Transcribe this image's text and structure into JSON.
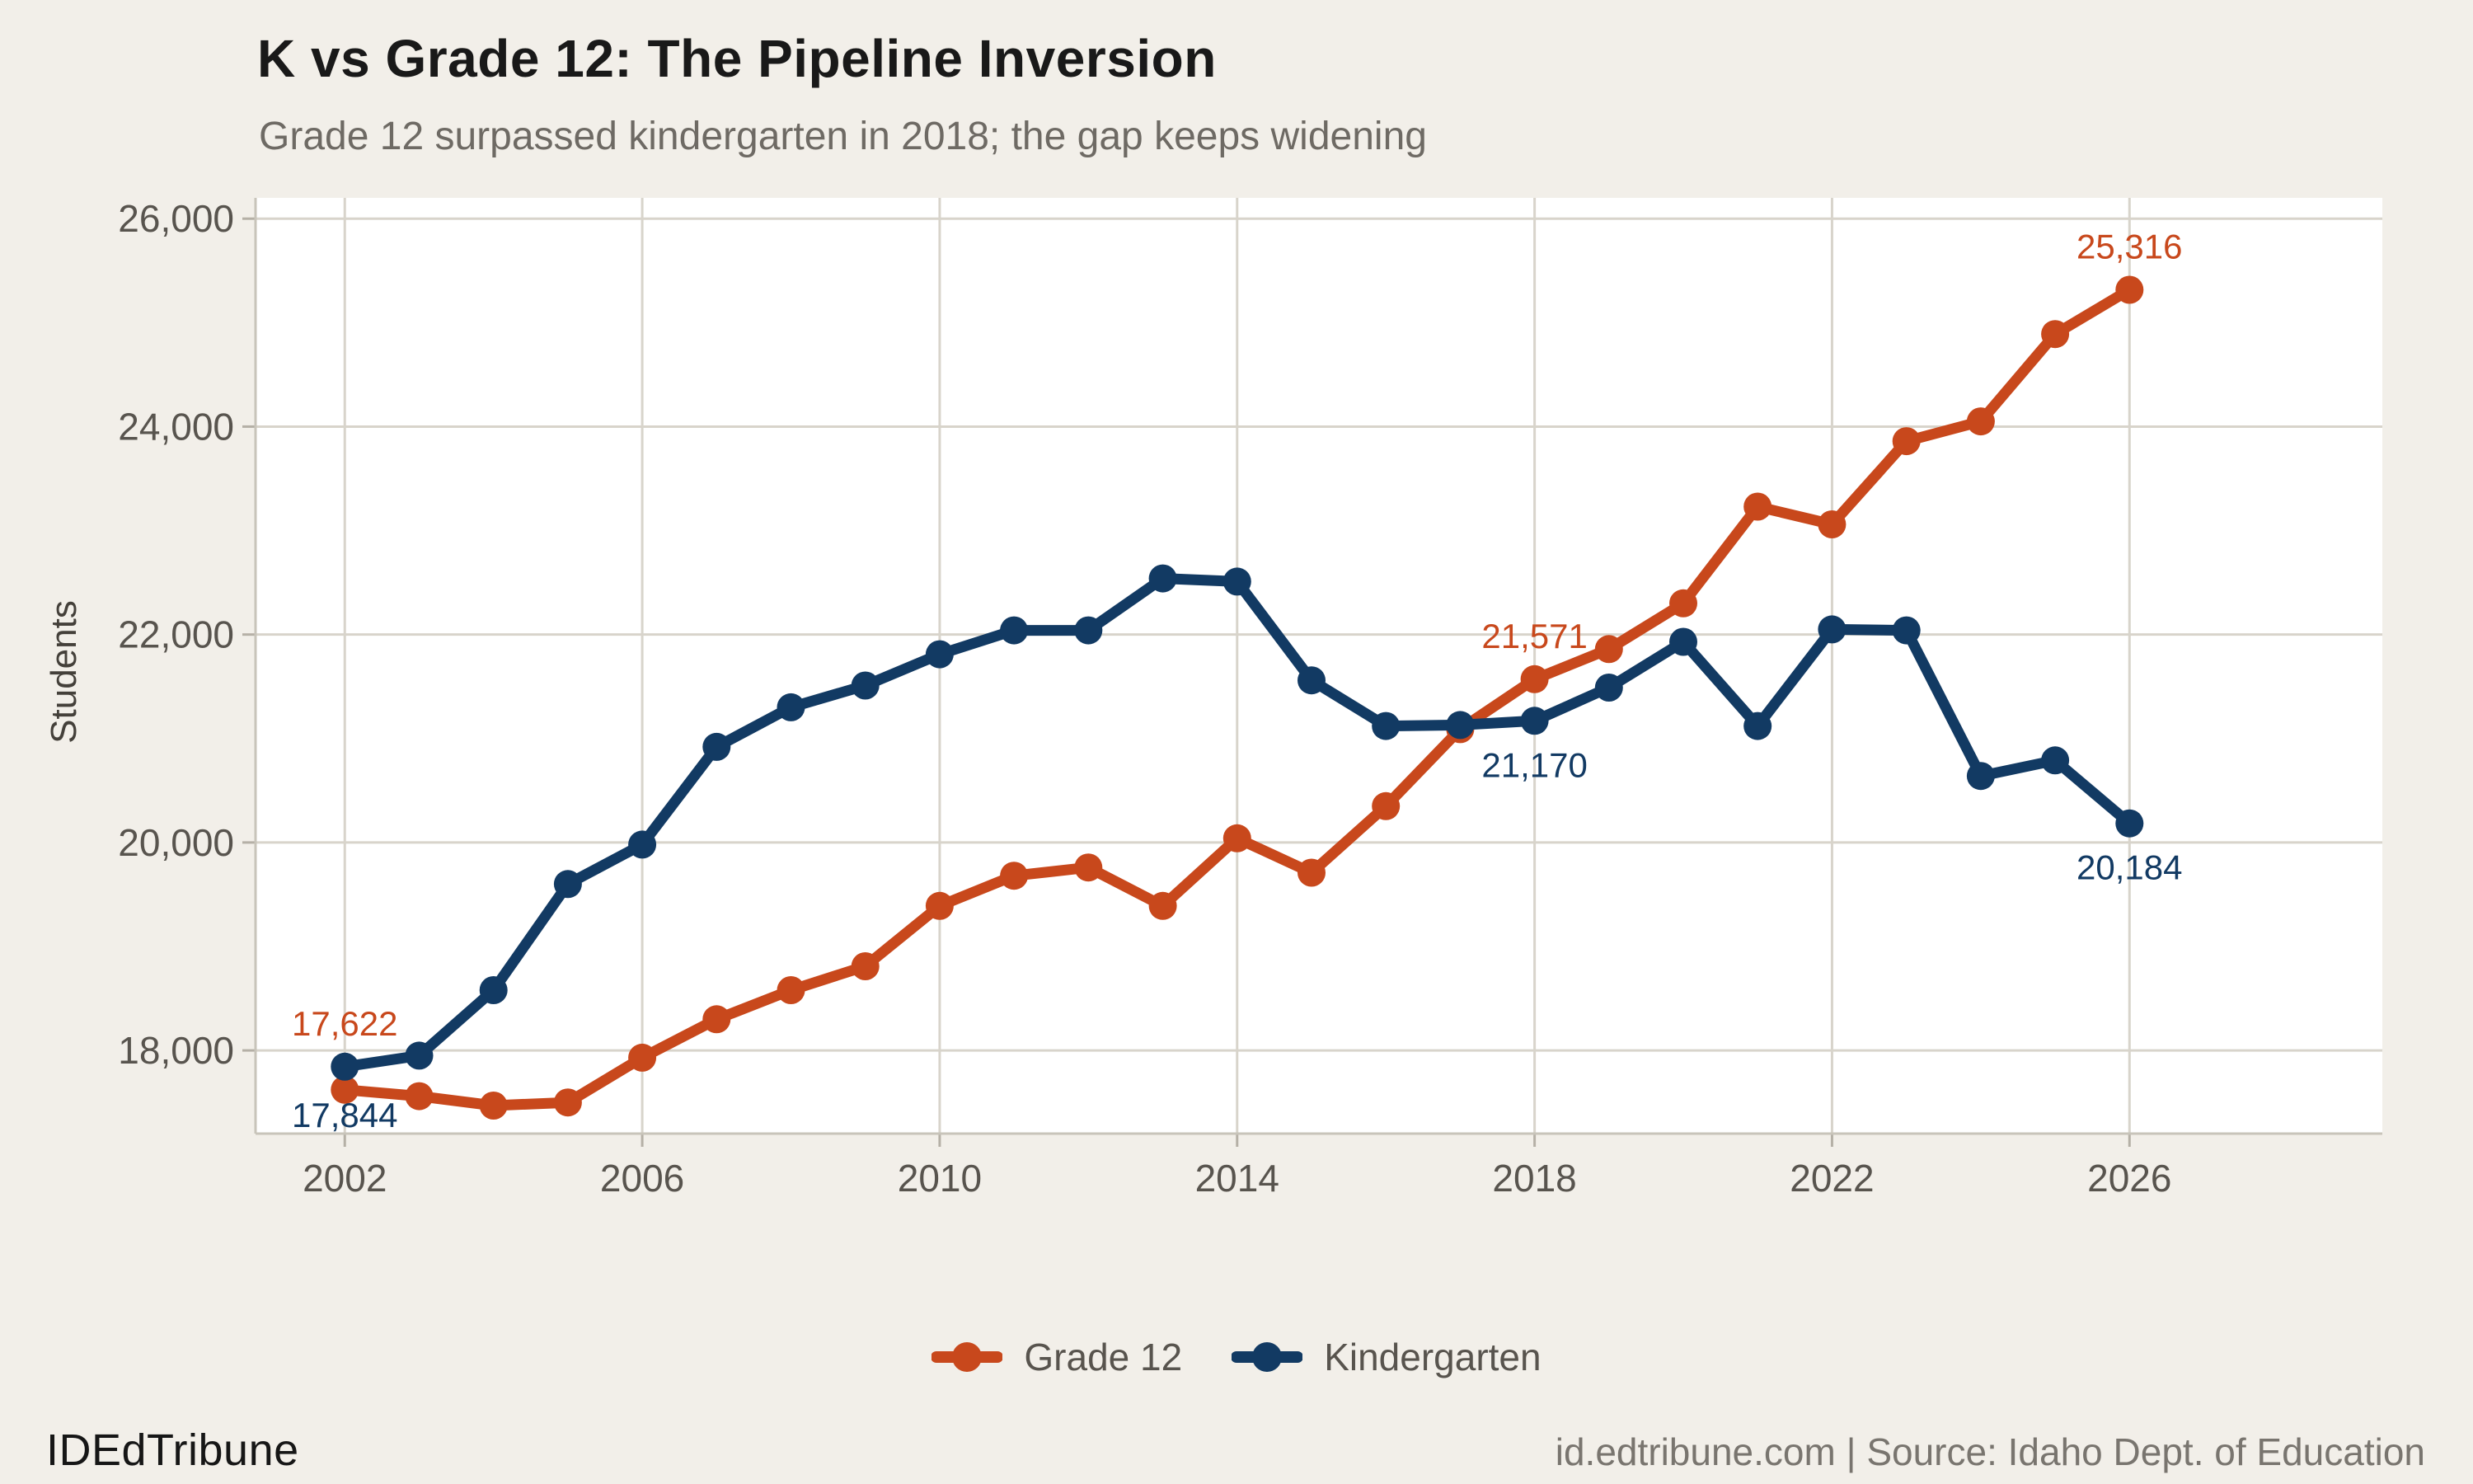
{
  "header": {
    "title": "K vs Grade 12: The Pipeline Inversion",
    "subtitle": "Grade 12 surpassed kindergarten in 2018; the gap keeps widening"
  },
  "footer": {
    "brand": "IDEdTribune",
    "attribution": "id.edtribune.com | Source: Idaho Dept. of Education"
  },
  "colors": {
    "background": "#F2EFE9",
    "plot_background": "#FFFFFF",
    "gridline": "#D8D4CB",
    "axis_edge": "#C8C4BA",
    "tick": "#B5B0A6",
    "grade12": "#C8481C",
    "kindergarten": "#123A63",
    "tick_label": "#58544E"
  },
  "chart_data": {
    "type": "line",
    "title": "K vs Grade 12: The Pipeline Inversion",
    "subtitle": "Grade 12 surpassed kindergarten in 2018; the gap keeps widening",
    "xlabel": "",
    "ylabel": "Students",
    "x": [
      2002,
      2003,
      2004,
      2005,
      2006,
      2007,
      2008,
      2009,
      2010,
      2011,
      2012,
      2013,
      2014,
      2015,
      2016,
      2017,
      2018,
      2019,
      2020,
      2021,
      2022,
      2023,
      2024,
      2025,
      2026
    ],
    "series": [
      {
        "name": "Grade 12",
        "color": "#C8481C",
        "values": [
          17622,
          17560,
          17470,
          17500,
          17930,
          18300,
          18580,
          18810,
          19390,
          19680,
          19760,
          19390,
          20040,
          19710,
          20350,
          21090,
          21571,
          21860,
          22300,
          23230,
          23060,
          23860,
          24050,
          24890,
          25316
        ]
      },
      {
        "name": "Kindergarten",
        "color": "#123A63",
        "values": [
          17844,
          17950,
          18580,
          19600,
          19980,
          20920,
          21300,
          21510,
          21810,
          22040,
          22040,
          22540,
          22510,
          21560,
          21120,
          21130,
          21170,
          21490,
          21930,
          21120,
          22050,
          22040,
          20640,
          20790,
          20184
        ]
      }
    ],
    "x_ticks": [
      2002,
      2006,
      2010,
      2014,
      2018,
      2022,
      2026
    ],
    "y_ticks": [
      18000,
      20000,
      22000,
      24000,
      26000
    ],
    "xlim": [
      2000.8,
      2029.4
    ],
    "ylim": [
      17200,
      26200
    ],
    "grid": true,
    "legend_position": "bottom",
    "annotations": [
      {
        "series": "Grade 12",
        "year": 2002,
        "text": "17,622",
        "placement": "above"
      },
      {
        "series": "Kindergarten",
        "year": 2002,
        "text": "17,844",
        "placement": "below"
      },
      {
        "series": "Grade 12",
        "year": 2018,
        "text": "21,571",
        "placement": "above"
      },
      {
        "series": "Kindergarten",
        "year": 2018,
        "text": "21,170",
        "placement": "below"
      },
      {
        "series": "Grade 12",
        "year": 2026,
        "text": "25,316",
        "placement": "above"
      },
      {
        "series": "Kindergarten",
        "year": 2026,
        "text": "20,184",
        "placement": "below"
      }
    ]
  },
  "legend": {
    "items": [
      {
        "label": "Grade 12",
        "color": "#C8481C"
      },
      {
        "label": "Kindergarten",
        "color": "#123A63"
      }
    ]
  }
}
